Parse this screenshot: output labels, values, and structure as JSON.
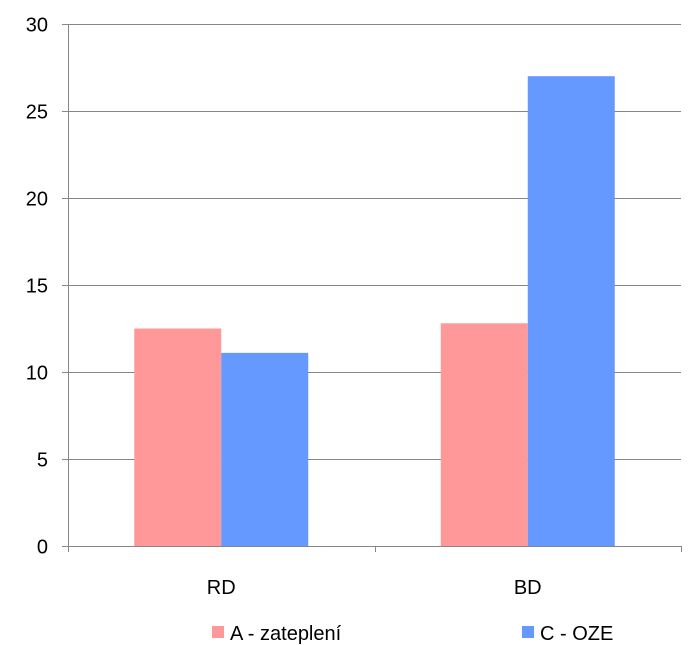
{
  "chart_data": {
    "type": "bar",
    "categories": [
      "RD",
      "BD"
    ],
    "series": [
      {
        "name": "A - zateplení",
        "values": [
          12.5,
          12.8
        ],
        "color": "#ff9999"
      },
      {
        "name": "C - OZE",
        "values": [
          11.1,
          27.0
        ],
        "color": "#6699ff"
      }
    ],
    "ylim": [
      0,
      30
    ],
    "yticks": [
      0,
      5,
      10,
      15,
      20,
      25,
      30
    ],
    "grid": true,
    "legend": "bottom"
  }
}
